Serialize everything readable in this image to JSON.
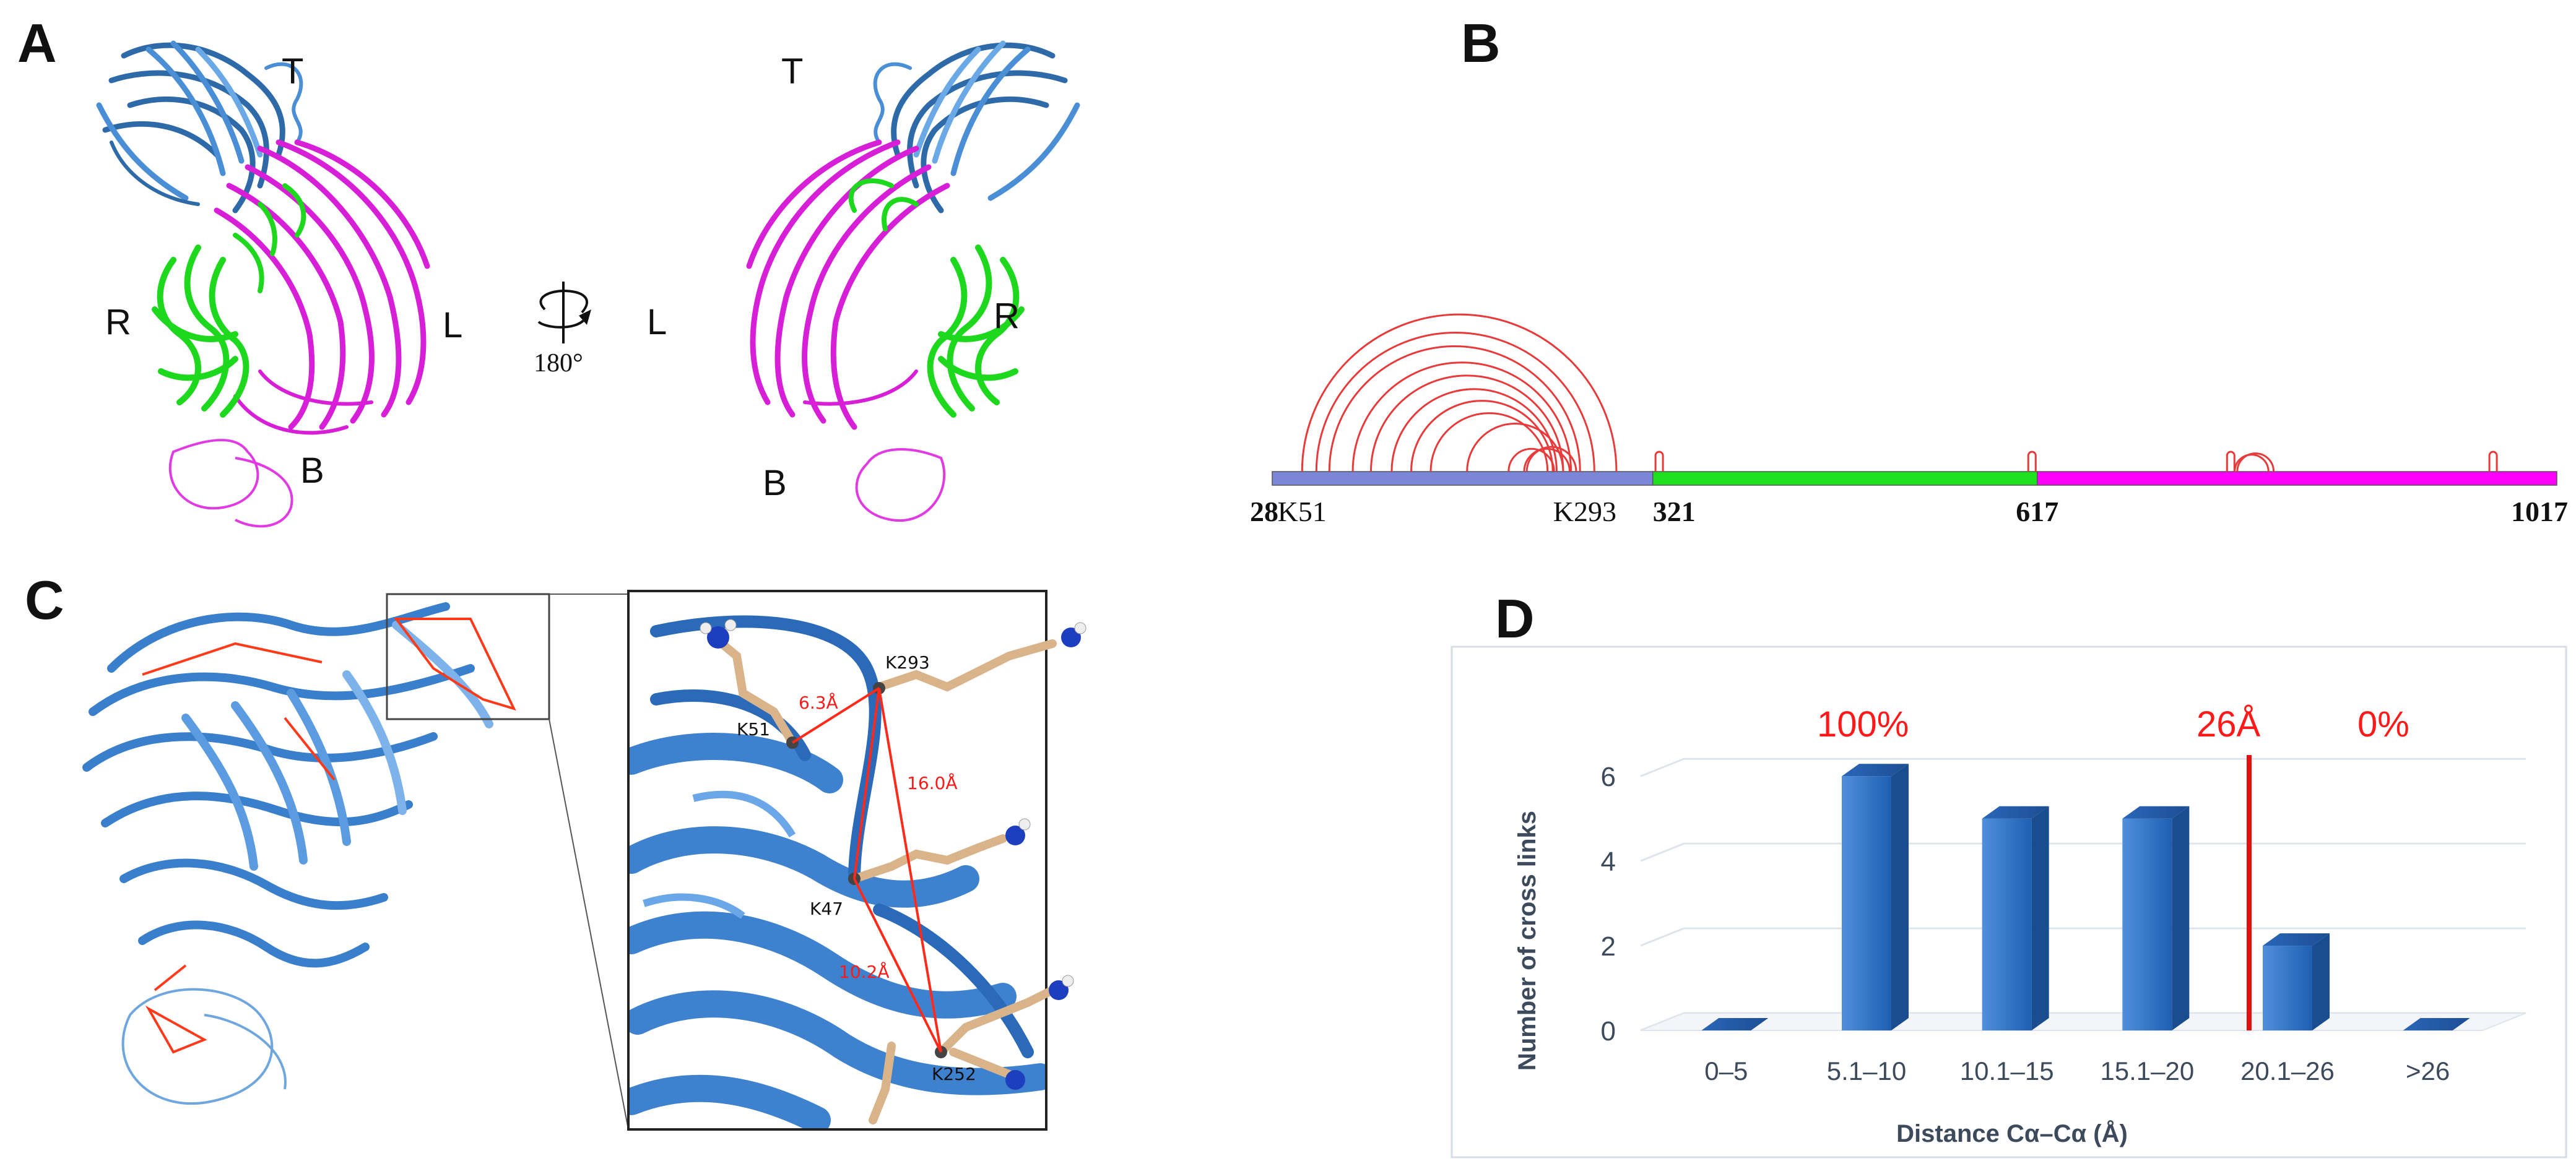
{
  "panels": {
    "a": {
      "label": "A",
      "left_view": {
        "top": "T",
        "left": "R",
        "right": "L",
        "bottom": "B"
      },
      "right_view": {
        "top": "T",
        "left": "L",
        "right": "R",
        "bottom": "B"
      },
      "rotation": "180°"
    },
    "b": {
      "label": "B",
      "ticks": [
        {
          "text": "28",
          "pos": 28,
          "bold": true
        },
        {
          "text": "K51",
          "pos": 51,
          "bold": false
        },
        {
          "text": "K293",
          "pos": 293,
          "bold": false
        },
        {
          "text": "321",
          "pos": 321,
          "bold": true
        },
        {
          "text": "617",
          "pos": 617,
          "bold": true
        },
        {
          "text": "1017",
          "pos": 1017,
          "bold": true
        }
      ],
      "domains": [
        {
          "start": 28,
          "end": 321,
          "color": "#7b86d8"
        },
        {
          "start": 321,
          "end": 617,
          "color": "#1fe01f"
        },
        {
          "start": 617,
          "end": 1017,
          "color": "#ff00ff"
        }
      ],
      "links": [
        [
          51,
          293
        ],
        [
          62,
          276
        ],
        [
          72,
          265
        ],
        [
          90,
          258
        ],
        [
          104,
          252
        ],
        [
          120,
          247
        ],
        [
          135,
          244
        ],
        [
          150,
          240
        ],
        [
          178,
          252
        ],
        [
          210,
          245
        ],
        [
          222,
          257
        ],
        [
          224,
          262
        ],
        [
          325,
          326
        ],
        [
          612,
          614
        ],
        [
          765,
          766
        ],
        [
          769,
          795
        ],
        [
          771,
          799
        ],
        [
          967,
          968
        ]
      ],
      "link_color": "#e83a3a"
    },
    "c": {
      "label": "C",
      "residues": [
        "K51",
        "K293",
        "K47",
        "K252"
      ],
      "distances": [
        "6.3Å",
        "16.0Å",
        "10.2Å"
      ]
    },
    "d": {
      "label": "D",
      "chart_data": {
        "type": "bar",
        "categories": [
          "0–5",
          "5.1–10",
          "10.1–15",
          "15.1–20",
          "20.1–26",
          ">26"
        ],
        "values": [
          0,
          6,
          5,
          5,
          2,
          0
        ],
        "xlabel": "Distance Cα–Cα (Å)",
        "ylabel": "Number of cross links",
        "yticks": [
          "0",
          "2",
          "4",
          "6"
        ],
        "ylim": [
          0,
          6.5
        ],
        "cutoff_label": "26Å",
        "annotations": [
          "100%",
          "0%"
        ],
        "bar_color": "#2f72c4",
        "annotation_color": "#ff1a1a"
      }
    }
  }
}
